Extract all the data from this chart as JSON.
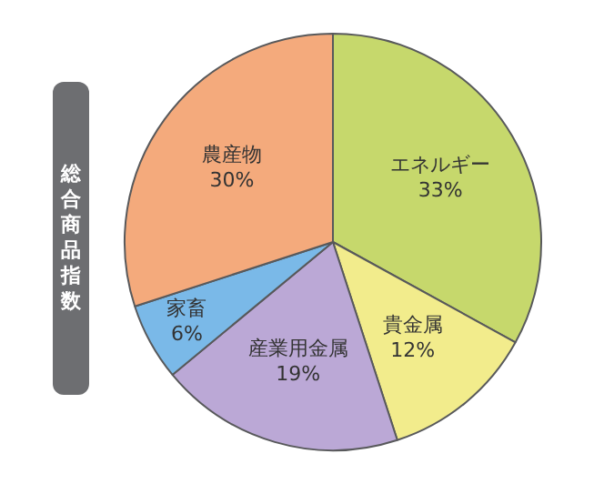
{
  "chart_data": {
    "type": "pie",
    "title": "総合商品指数",
    "categories": [
      "エネルギー",
      "貴金属",
      "産業用金属",
      "家畜",
      "農産物"
    ],
    "values": [
      33,
      12,
      19,
      6,
      30
    ],
    "value_labels": [
      "33%",
      "12%",
      "19%",
      "6%",
      "30%"
    ],
    "colors": [
      "#c6d86c",
      "#f2ec8c",
      "#bba8d6",
      "#7ab9e8",
      "#f4aa7c"
    ],
    "legend": false
  }
}
